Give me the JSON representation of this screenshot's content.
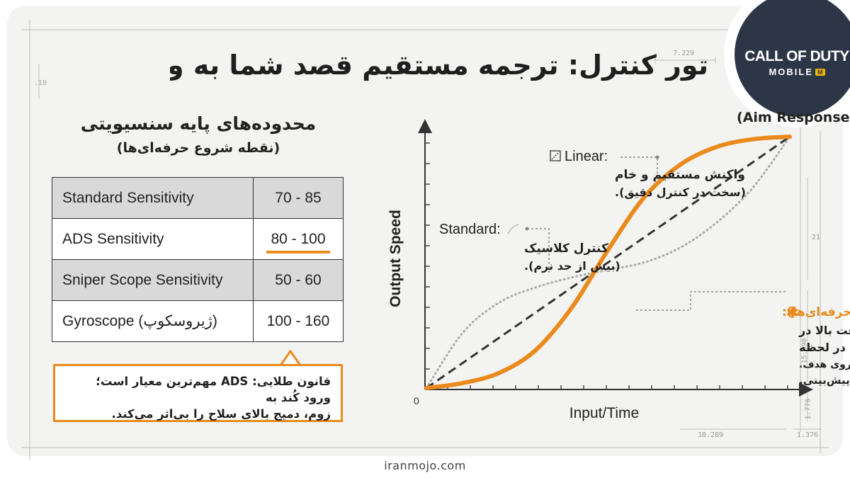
{
  "headline": "تور کنترل: ترجمه مستقیم قصد شما به واکنش‌های درون بازی.",
  "logo": {
    "main": "CALL OF DUTY",
    "sub": "MOBILE",
    "badge": "M"
  },
  "sensitivity": {
    "title": "محدوده‌های پایه سنسیویتی",
    "subtitle": "(نقطه شروع حرفه‌ای‌ها)",
    "rows": [
      {
        "name": "Standard Sensitivity",
        "range": "70 - 85"
      },
      {
        "name": "ADS Sensitivity",
        "range": "80 - 100"
      },
      {
        "name": "Sniper Scope Sensitivity",
        "range": "50 - 60"
      },
      {
        "name": "Gyroscope (ژیروسکوپ)",
        "range": "100 - 160"
      }
    ],
    "highlighted_row": 1
  },
  "rule": {
    "line1": "قانون طلایی: ADS مهم‌ترین معیار است؛ ورود کُند به",
    "line2": "زوم، دمیج بالای سلاح را بی‌اثر می‌کند."
  },
  "blueprint_marks": {
    "top": "7.229",
    "left": ".18",
    "right_a": "21",
    "right_b": "15.998",
    "right_c": "1.776",
    "right_top": "1",
    "bottom_a": "18.289",
    "bottom_b": "1.376"
  },
  "colors": {
    "accent": "#ea8a1c",
    "logo_bg": "#2c3646",
    "dashed": "#333333",
    "dotted": "#aaaaaa"
  },
  "chart_data": {
    "type": "line",
    "title": "رفتار نشانه‌گیری (Aim Response Curve)",
    "xlabel": "Input/Time",
    "ylabel": "Output Speed",
    "origin_label": "0",
    "xlim": [
      0,
      1
    ],
    "ylim": [
      0,
      1
    ],
    "series": [
      {
        "name": "Linear",
        "style": "dashed",
        "color": "#333333",
        "x": [
          0,
          1
        ],
        "y": [
          0,
          1
        ]
      },
      {
        "name": "Standard",
        "style": "dotted",
        "color": "#aaaaaa",
        "x": [
          0,
          0.1,
          0.2,
          0.3,
          0.4,
          0.5,
          0.6,
          0.7,
          0.8,
          0.9,
          1
        ],
        "y": [
          0,
          0.22,
          0.34,
          0.4,
          0.44,
          0.47,
          0.5,
          0.56,
          0.66,
          0.8,
          1
        ]
      },
      {
        "name": "Dynamic",
        "style": "solid",
        "color": "#ea8a1c",
        "x": [
          0,
          0.1,
          0.2,
          0.3,
          0.4,
          0.5,
          0.6,
          0.7,
          0.8,
          0.9,
          1
        ],
        "y": [
          0,
          0.02,
          0.06,
          0.15,
          0.32,
          0.55,
          0.76,
          0.89,
          0.96,
          0.99,
          1
        ]
      }
    ],
    "annotations": {
      "linear": {
        "label": "Linear:",
        "line1": "واکنش مستقیم و خام",
        "line2": "(سخت در کنترل دقیق)."
      },
      "standard": {
        "label": "Standard:",
        "line1": "کنترل کلاسیک",
        "line2": "(بیش از حد نرم)."
      },
      "dynamic": {
        "label": "Dynamic (انتخاب حرفه‌ای‌ها):",
        "line1": "ترکیبی بی‌نقص از سرعت بالا در",
        "line2": "لحظه Quick Scope بالا در لحظه",
        "line3": "Quick Scope و کنترل عالی روی هدف.",
        "line4": "هدف‌گیری سریع و قابل پیش‌بینی."
      }
    }
  },
  "footer": "iranmojo.com"
}
